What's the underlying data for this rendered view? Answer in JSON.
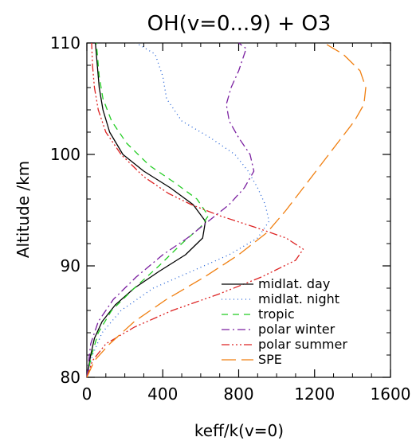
{
  "chart_data": {
    "type": "line",
    "title": "OH(v=0...9) + O3",
    "xlabel": "keff/k(v=0)",
    "ylabel": "Altitude /km",
    "xlim": [
      0,
      1600
    ],
    "ylim": [
      80,
      110
    ],
    "xticks": [
      0,
      400,
      800,
      1200,
      1600
    ],
    "yticks": [
      80,
      90,
      100,
      110
    ],
    "grid": false,
    "legend_position": "bottom-right",
    "series": [
      {
        "name": "midlat. day",
        "color": "#000000",
        "dash": "solid",
        "points": [
          [
            0,
            80
          ],
          [
            20,
            82
          ],
          [
            40,
            83.5
          ],
          [
            80,
            85
          ],
          [
            150,
            86.5
          ],
          [
            250,
            88
          ],
          [
            380,
            89.5
          ],
          [
            520,
            91
          ],
          [
            610,
            92.5
          ],
          [
            625,
            94
          ],
          [
            560,
            95.5
          ],
          [
            440,
            97
          ],
          [
            300,
            98.5
          ],
          [
            190,
            100
          ],
          [
            120,
            102
          ],
          [
            85,
            104
          ],
          [
            65,
            106
          ],
          [
            55,
            108
          ],
          [
            45,
            110
          ]
        ]
      },
      {
        "name": "midlat. night",
        "color": "#1f5fd6",
        "dash": "1,4",
        "points": [
          [
            0,
            80
          ],
          [
            30,
            82
          ],
          [
            80,
            84
          ],
          [
            180,
            86
          ],
          [
            350,
            88
          ],
          [
            550,
            89.5
          ],
          [
            750,
            91
          ],
          [
            900,
            92.5
          ],
          [
            960,
            94
          ],
          [
            940,
            95.5
          ],
          [
            900,
            97
          ],
          [
            850,
            98.5
          ],
          [
            780,
            100
          ],
          [
            650,
            101.5
          ],
          [
            500,
            103
          ],
          [
            420,
            105
          ],
          [
            400,
            107
          ],
          [
            360,
            109
          ],
          [
            260,
            110
          ]
        ]
      },
      {
        "name": "tropic",
        "color": "#22cc22",
        "dash": "8,6",
        "points": [
          [
            0,
            80
          ],
          [
            25,
            82
          ],
          [
            60,
            84
          ],
          [
            130,
            86
          ],
          [
            250,
            88
          ],
          [
            380,
            90
          ],
          [
            500,
            92
          ],
          [
            600,
            93.5
          ],
          [
            640,
            94.5
          ],
          [
            580,
            96
          ],
          [
            460,
            97.5
          ],
          [
            330,
            99
          ],
          [
            210,
            101
          ],
          [
            130,
            103
          ],
          [
            85,
            105
          ],
          [
            65,
            107
          ],
          [
            55,
            109
          ],
          [
            50,
            110
          ]
        ]
      },
      {
        "name": "polar winter",
        "color": "#7a1fa0",
        "dash": "10,4,2,4",
        "points": [
          [
            0,
            80
          ],
          [
            20,
            83
          ],
          [
            60,
            85
          ],
          [
            140,
            87
          ],
          [
            260,
            89
          ],
          [
            400,
            91
          ],
          [
            530,
            92.5
          ],
          [
            640,
            94
          ],
          [
            750,
            95.5
          ],
          [
            830,
            97
          ],
          [
            880,
            98.5
          ],
          [
            860,
            100
          ],
          [
            800,
            101.5
          ],
          [
            750,
            103
          ],
          [
            735,
            104.5
          ],
          [
            760,
            106
          ],
          [
            800,
            107.5
          ],
          [
            830,
            109
          ],
          [
            840,
            109.5
          ],
          [
            800,
            110
          ]
        ]
      },
      {
        "name": "polar summer",
        "color": "#dd2222",
        "dash": "10,3,2,3,2,3,2,3",
        "points": [
          [
            0,
            80
          ],
          [
            30,
            81.5
          ],
          [
            100,
            83
          ],
          [
            250,
            84.5
          ],
          [
            450,
            86
          ],
          [
            700,
            87.5
          ],
          [
            920,
            89
          ],
          [
            1100,
            90.5
          ],
          [
            1140,
            91.5
          ],
          [
            1050,
            92.5
          ],
          [
            880,
            93.5
          ],
          [
            700,
            94.5
          ],
          [
            550,
            95.5
          ],
          [
            430,
            96.5
          ],
          [
            300,
            98
          ],
          [
            180,
            100
          ],
          [
            100,
            102
          ],
          [
            60,
            104
          ],
          [
            40,
            106
          ],
          [
            30,
            108
          ],
          [
            25,
            110
          ]
        ]
      },
      {
        "name": "SPE",
        "color": "#f07f10",
        "dash": "18,7",
        "points": [
          [
            0,
            80
          ],
          [
            40,
            81.5
          ],
          [
            120,
            83
          ],
          [
            250,
            85
          ],
          [
            420,
            87
          ],
          [
            620,
            89
          ],
          [
            800,
            91
          ],
          [
            950,
            93
          ],
          [
            1050,
            95
          ],
          [
            1140,
            97
          ],
          [
            1230,
            99
          ],
          [
            1320,
            101
          ],
          [
            1410,
            103
          ],
          [
            1460,
            104.5
          ],
          [
            1470,
            106
          ],
          [
            1440,
            107.5
          ],
          [
            1350,
            109
          ],
          [
            1250,
            110
          ]
        ]
      }
    ]
  }
}
